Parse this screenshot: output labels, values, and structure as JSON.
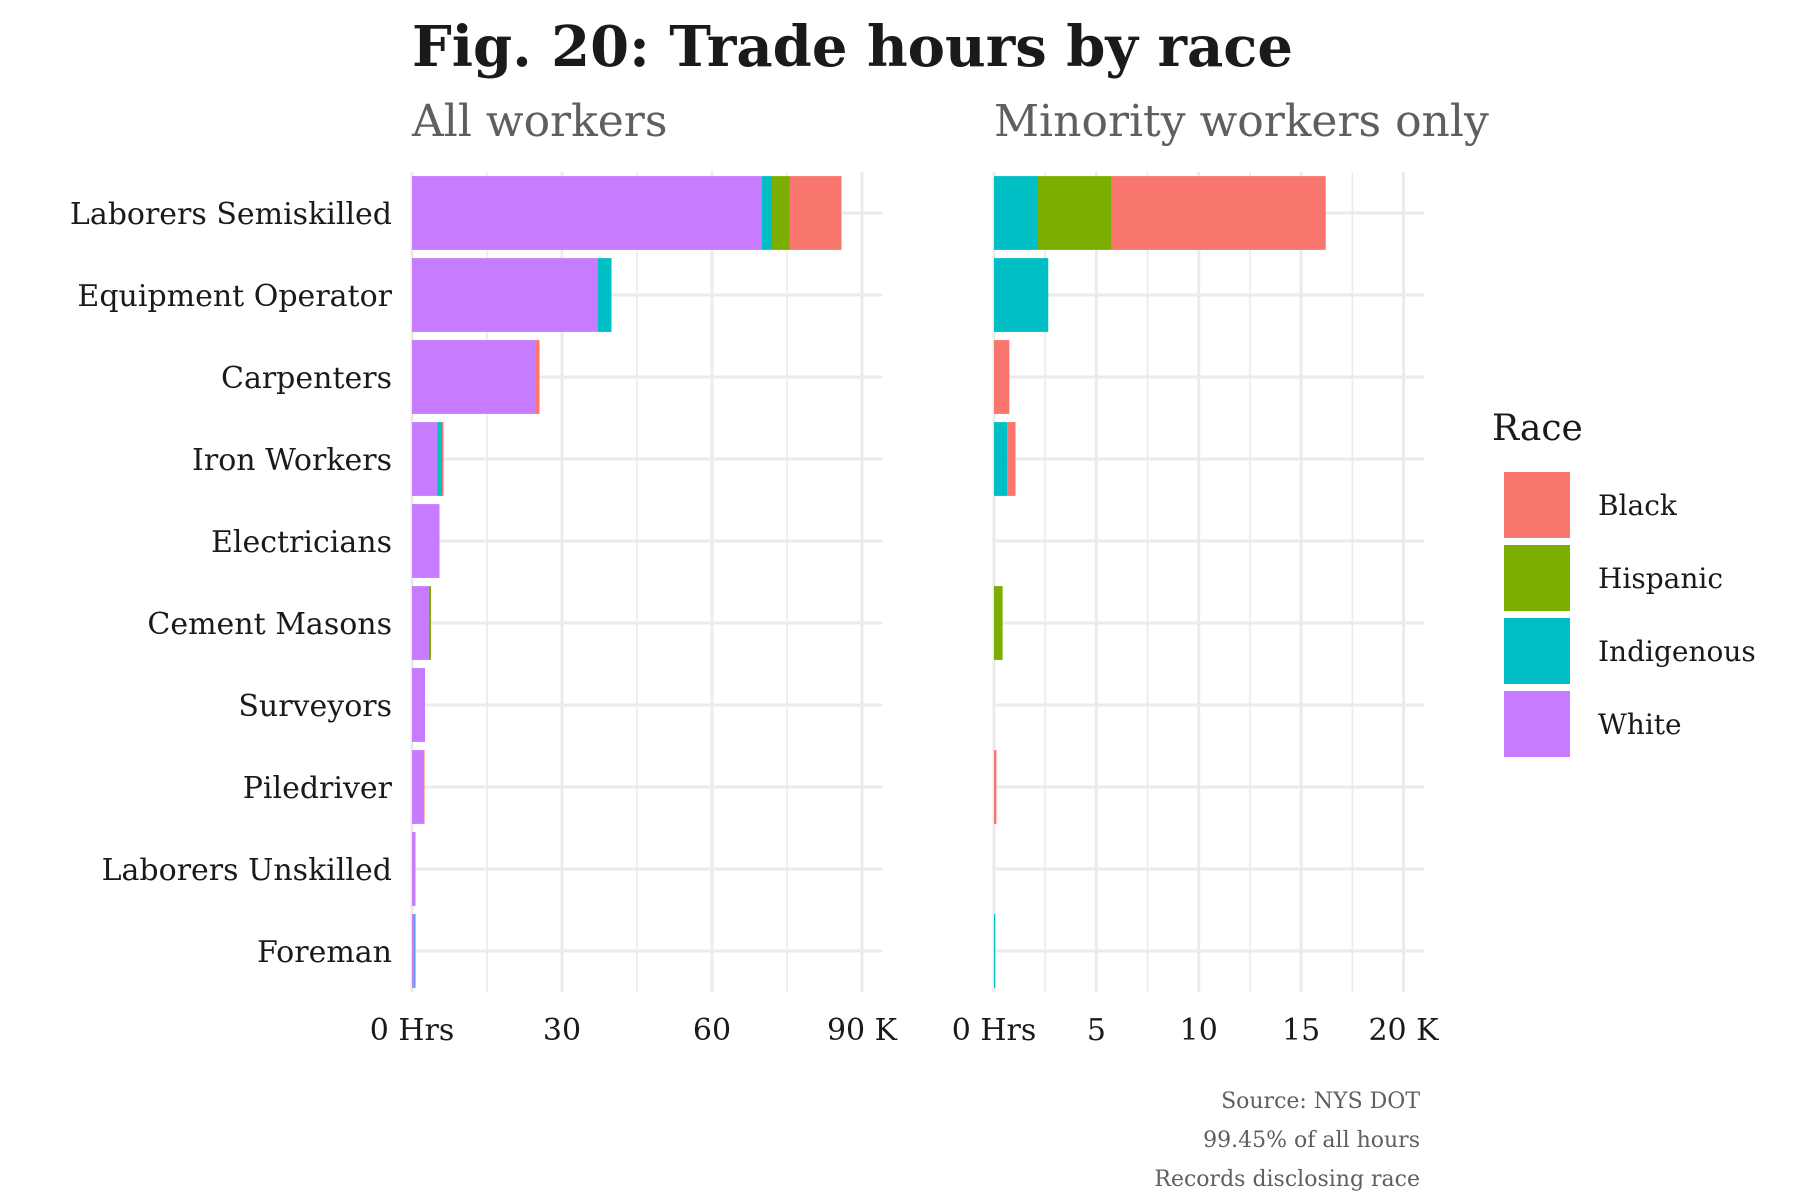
{
  "title": "Fig. 20: Trade hours by race",
  "caption": [
    "Source: NYS DOT",
    "99.45% of all hours",
    "Records disclosing race"
  ],
  "colors": {
    "Black": "#F8766D",
    "Hispanic": "#7CAE00",
    "Indigenous": "#00BFC4",
    "White": "#C77CFF"
  },
  "chart_data": [
    {
      "type": "bar",
      "orientation": "horizontal",
      "stacked": true,
      "subtitle": "All workers",
      "units": "thousand hours",
      "categories": [
        "Laborers Semiskilled",
        "Equipment Operator",
        "Carpenters",
        "Iron Workers",
        "Electricians",
        "Cement Masons",
        "Surveyors",
        "Piledriver",
        "Laborers Unskilled",
        "Foreman"
      ],
      "series": [
        {
          "name": "White",
          "values": [
            70,
            37.2,
            24.8,
            5.1,
            5.5,
            3.4,
            2.6,
            2.3,
            0.7,
            0.5
          ]
        },
        {
          "name": "Indigenous",
          "values": [
            2.0,
            2.7,
            0,
            0.9,
            0,
            0,
            0,
            0,
            0,
            0.05
          ]
        },
        {
          "name": "Hispanic",
          "values": [
            3.5,
            0,
            0,
            0,
            0,
            0.4,
            0,
            0,
            0,
            0
          ]
        },
        {
          "name": "Black",
          "values": [
            10.4,
            0,
            0.7,
            0.3,
            0,
            0,
            0,
            0.1,
            0,
            0
          ]
        }
      ],
      "xlim": [
        0,
        94
      ],
      "xticks": [
        0,
        30,
        60,
        90
      ],
      "xtick_labels": [
        "0 Hrs",
        "30",
        "60",
        "90 K"
      ],
      "grid": true
    },
    {
      "type": "bar",
      "orientation": "horizontal",
      "stacked": true,
      "subtitle": "Minority workers only",
      "units": "thousand hours",
      "categories": [
        "Laborers Semiskilled",
        "Equipment Operator",
        "Carpenters",
        "Iron Workers",
        "Electricians",
        "Cement Masons",
        "Surveyors",
        "Piledriver",
        "Laborers Unskilled",
        "Foreman"
      ],
      "series": [
        {
          "name": "Indigenous",
          "values": [
            2.15,
            2.65,
            0,
            0.65,
            0,
            0,
            0,
            0,
            0,
            0.06
          ]
        },
        {
          "name": "Hispanic",
          "values": [
            3.6,
            0,
            0,
            0,
            0,
            0.42,
            0,
            0,
            0,
            0
          ]
        },
        {
          "name": "Black",
          "values": [
            10.45,
            0,
            0.75,
            0.4,
            0,
            0,
            0,
            0.12,
            0,
            0
          ]
        }
      ],
      "xlim": [
        0,
        21
      ],
      "xticks": [
        0,
        5,
        10,
        15,
        20
      ],
      "xtick_labels": [
        "0 Hrs",
        "5",
        "10",
        "15",
        "20 K"
      ],
      "grid": true
    }
  ],
  "legend": {
    "title": "Race",
    "placement": "right",
    "items": [
      "Black",
      "Hispanic",
      "Indigenous",
      "White"
    ]
  }
}
